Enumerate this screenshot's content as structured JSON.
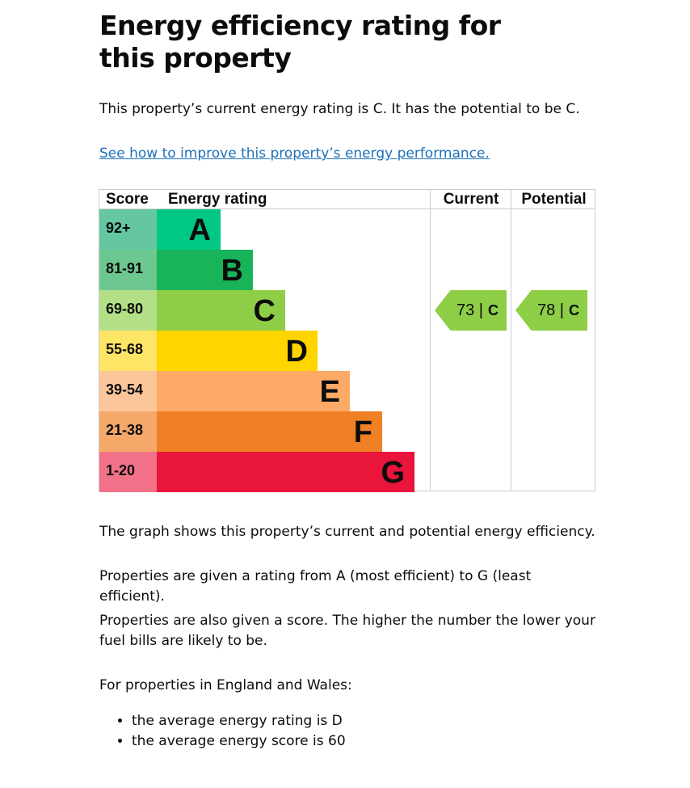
{
  "title": "Energy efficiency rating for this property",
  "intro": "This property’s current energy rating is C. It has the potential to be C.",
  "link": "See how to improve this property’s energy performance.",
  "table": {
    "headers": [
      "Score",
      "Energy rating",
      "Current",
      "Potential"
    ],
    "rows": [
      {
        "score": "92+",
        "band": "A",
        "color": "#00c781",
        "score_color": "#64c7a2"
      },
      {
        "score": "81-91",
        "band": "B",
        "color": "#19b459",
        "score_color": "#6dc88f"
      },
      {
        "score": "69-80",
        "band": "C",
        "color": "#8dce46",
        "score_color": "#b3df86"
      },
      {
        "score": "55-68",
        "band": "D",
        "color": "#ffd500",
        "score_color": "#ffe566"
      },
      {
        "score": "39-54",
        "band": "E",
        "color": "#fcaa65",
        "score_color": "#fdc69a"
      },
      {
        "score": "21-38",
        "band": "F",
        "color": "#ef8023",
        "score_color": "#f4a86a"
      },
      {
        "score": "1-20",
        "band": "G",
        "color": "#e9153b",
        "score_color": "#f27289"
      }
    ],
    "current": {
      "score": "73",
      "band": "C"
    },
    "potential": {
      "score": "78",
      "band": "C"
    }
  },
  "paras": [
    "The graph shows this property’s current and potential energy efficiency.",
    "Properties are given a rating from A (most efficient) to G (least efficient).",
    "Properties are also given a score. The higher the number the lower your fuel bills are likely to be.",
    "For properties in England and Wales:"
  ],
  "bullets": [
    "the average energy rating is D",
    "the average energy score is 60"
  ]
}
